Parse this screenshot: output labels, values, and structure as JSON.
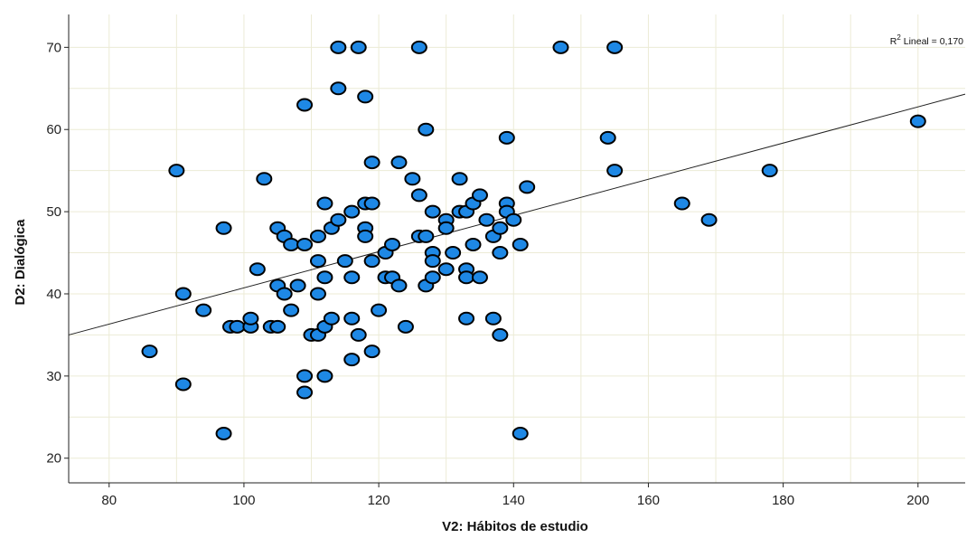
{
  "chart_data": {
    "type": "scatter",
    "xlabel": "V2: Hábitos de estudio",
    "ylabel": "D2: Dialógica",
    "xlim": [
      74,
      207
    ],
    "ylim": [
      17,
      74
    ],
    "x_ticks": [
      80,
      100,
      120,
      140,
      160,
      180,
      200
    ],
    "y_ticks": [
      20,
      30,
      40,
      50,
      60,
      70
    ],
    "x_gridlines": [
      90,
      110,
      130,
      150,
      170,
      190
    ],
    "y_gridlines": [
      25,
      35,
      45,
      55,
      65
    ],
    "grid": true,
    "marker_color": "#1e88e5",
    "marker_edge_color": "#000000",
    "fit_line": {
      "type": "linear",
      "x": [
        74,
        207
      ],
      "y": [
        35.0,
        64.3
      ]
    },
    "annotation": {
      "prefix": "R",
      "superscript": "2",
      "suffix": " Lineal = 0,170"
    },
    "points": [
      {
        "x": 86,
        "y": 33
      },
      {
        "x": 90,
        "y": 55
      },
      {
        "x": 91,
        "y": 40
      },
      {
        "x": 91,
        "y": 29
      },
      {
        "x": 94,
        "y": 38
      },
      {
        "x": 97,
        "y": 48
      },
      {
        "x": 97,
        "y": 23
      },
      {
        "x": 98,
        "y": 36
      },
      {
        "x": 99,
        "y": 36
      },
      {
        "x": 101,
        "y": 36
      },
      {
        "x": 101,
        "y": 37
      },
      {
        "x": 102,
        "y": 43
      },
      {
        "x": 103,
        "y": 54
      },
      {
        "x": 104,
        "y": 36
      },
      {
        "x": 105,
        "y": 48
      },
      {
        "x": 105,
        "y": 41
      },
      {
        "x": 105,
        "y": 36
      },
      {
        "x": 106,
        "y": 47
      },
      {
        "x": 106,
        "y": 40
      },
      {
        "x": 107,
        "y": 46
      },
      {
        "x": 107,
        "y": 38
      },
      {
        "x": 108,
        "y": 41
      },
      {
        "x": 109,
        "y": 63
      },
      {
        "x": 109,
        "y": 46
      },
      {
        "x": 109,
        "y": 30
      },
      {
        "x": 109,
        "y": 28
      },
      {
        "x": 110,
        "y": 35
      },
      {
        "x": 111,
        "y": 47
      },
      {
        "x": 111,
        "y": 44
      },
      {
        "x": 111,
        "y": 40
      },
      {
        "x": 111,
        "y": 35
      },
      {
        "x": 112,
        "y": 51
      },
      {
        "x": 112,
        "y": 42
      },
      {
        "x": 112,
        "y": 36
      },
      {
        "x": 112,
        "y": 30
      },
      {
        "x": 113,
        "y": 48
      },
      {
        "x": 113,
        "y": 37
      },
      {
        "x": 114,
        "y": 70
      },
      {
        "x": 114,
        "y": 65
      },
      {
        "x": 114,
        "y": 49
      },
      {
        "x": 115,
        "y": 44
      },
      {
        "x": 116,
        "y": 50
      },
      {
        "x": 116,
        "y": 42
      },
      {
        "x": 116,
        "y": 37
      },
      {
        "x": 116,
        "y": 32
      },
      {
        "x": 117,
        "y": 70
      },
      {
        "x": 117,
        "y": 35
      },
      {
        "x": 118,
        "y": 64
      },
      {
        "x": 118,
        "y": 51
      },
      {
        "x": 118,
        "y": 48
      },
      {
        "x": 118,
        "y": 47
      },
      {
        "x": 119,
        "y": 56
      },
      {
        "x": 119,
        "y": 51
      },
      {
        "x": 119,
        "y": 44
      },
      {
        "x": 119,
        "y": 33
      },
      {
        "x": 120,
        "y": 38
      },
      {
        "x": 121,
        "y": 45
      },
      {
        "x": 121,
        "y": 42
      },
      {
        "x": 122,
        "y": 46
      },
      {
        "x": 122,
        "y": 42
      },
      {
        "x": 123,
        "y": 56
      },
      {
        "x": 123,
        "y": 41
      },
      {
        "x": 124,
        "y": 36
      },
      {
        "x": 125,
        "y": 54
      },
      {
        "x": 126,
        "y": 70
      },
      {
        "x": 126,
        "y": 52
      },
      {
        "x": 126,
        "y": 47
      },
      {
        "x": 127,
        "y": 60
      },
      {
        "x": 127,
        "y": 47
      },
      {
        "x": 127,
        "y": 41
      },
      {
        "x": 128,
        "y": 50
      },
      {
        "x": 128,
        "y": 45
      },
      {
        "x": 128,
        "y": 44
      },
      {
        "x": 128,
        "y": 42
      },
      {
        "x": 130,
        "y": 49
      },
      {
        "x": 130,
        "y": 48
      },
      {
        "x": 130,
        "y": 43
      },
      {
        "x": 131,
        "y": 45
      },
      {
        "x": 132,
        "y": 54
      },
      {
        "x": 132,
        "y": 50
      },
      {
        "x": 133,
        "y": 50
      },
      {
        "x": 133,
        "y": 43
      },
      {
        "x": 133,
        "y": 42
      },
      {
        "x": 133,
        "y": 37
      },
      {
        "x": 134,
        "y": 51
      },
      {
        "x": 134,
        "y": 46
      },
      {
        "x": 135,
        "y": 52
      },
      {
        "x": 135,
        "y": 42
      },
      {
        "x": 136,
        "y": 49
      },
      {
        "x": 137,
        "y": 47
      },
      {
        "x": 137,
        "y": 37
      },
      {
        "x": 138,
        "y": 48
      },
      {
        "x": 138,
        "y": 45
      },
      {
        "x": 138,
        "y": 35
      },
      {
        "x": 139,
        "y": 59
      },
      {
        "x": 139,
        "y": 51
      },
      {
        "x": 139,
        "y": 50
      },
      {
        "x": 140,
        "y": 49
      },
      {
        "x": 141,
        "y": 46
      },
      {
        "x": 141,
        "y": 23
      },
      {
        "x": 142,
        "y": 53
      },
      {
        "x": 147,
        "y": 70
      },
      {
        "x": 154,
        "y": 59
      },
      {
        "x": 155,
        "y": 70
      },
      {
        "x": 155,
        "y": 55
      },
      {
        "x": 165,
        "y": 51
      },
      {
        "x": 169,
        "y": 49
      },
      {
        "x": 178,
        "y": 55
      },
      {
        "x": 200,
        "y": 61
      }
    ]
  }
}
